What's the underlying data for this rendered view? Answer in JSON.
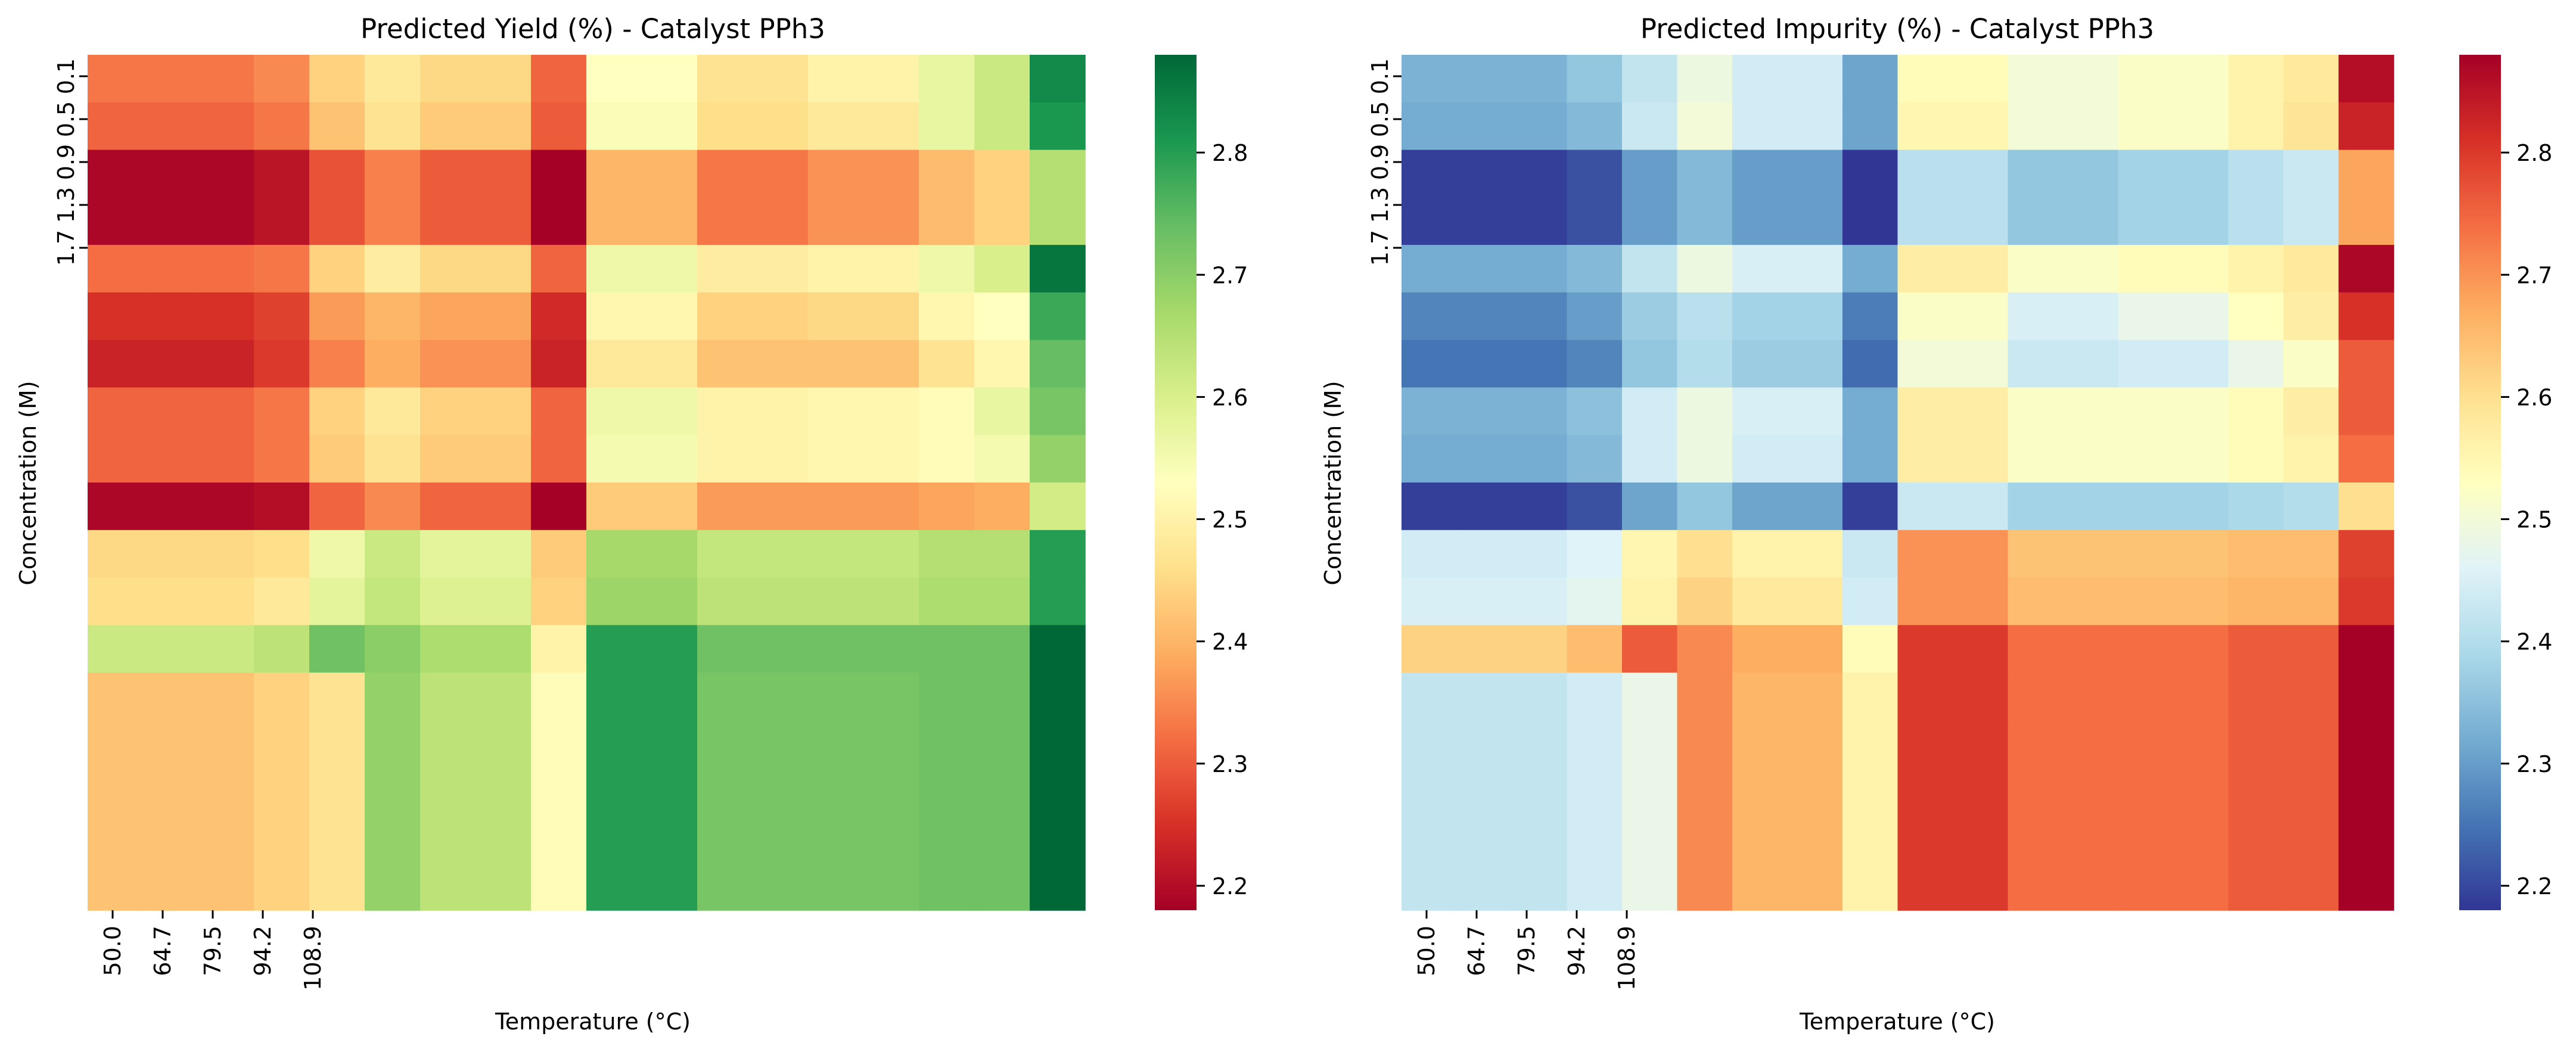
{
  "chart_data": [
    {
      "type": "heatmap",
      "title": "Predicted Yield (%) - Catalyst PPh3",
      "xlabel": "Temperature (°C)",
      "ylabel": "Concentration (M)",
      "x_tick_labels": [
        "50.0",
        "64.7",
        "79.5",
        "94.2",
        "108.9"
      ],
      "y_tick_labels": [
        "0.1",
        "0.5",
        "0.9",
        "1.3",
        "1.7"
      ],
      "colormap": "RdYlGn",
      "color_range": [
        2.18,
        2.88
      ],
      "colorbar_ticks": [
        "2.2",
        "2.3",
        "2.4",
        "2.5",
        "2.6",
        "2.7",
        "2.8"
      ],
      "colorbar_tick_values": [
        2.2,
        2.3,
        2.4,
        2.5,
        2.6,
        2.7,
        2.8
      ],
      "col_widths": [
        1,
        1,
        1,
        1,
        1,
        1,
        2,
        1,
        2,
        2,
        2,
        1,
        1,
        1
      ],
      "row_heights": [
        1,
        1,
        2,
        1,
        1,
        1,
        1,
        1,
        1,
        1,
        1,
        1,
        1,
        4
      ],
      "cells": [
        [
          2.33,
          2.33,
          2.33,
          2.35,
          2.44,
          2.48,
          2.45,
          2.31,
          2.53,
          2.47,
          2.5,
          2.57,
          2.62,
          2.83
        ],
        [
          2.31,
          2.31,
          2.31,
          2.33,
          2.42,
          2.47,
          2.43,
          2.3,
          2.54,
          2.46,
          2.48,
          2.57,
          2.62,
          2.81
        ],
        [
          2.19,
          2.19,
          2.19,
          2.21,
          2.29,
          2.34,
          2.3,
          2.18,
          2.4,
          2.33,
          2.36,
          2.41,
          2.44,
          2.65
        ],
        [
          2.32,
          2.32,
          2.32,
          2.33,
          2.44,
          2.49,
          2.45,
          2.31,
          2.56,
          2.49,
          2.5,
          2.56,
          2.6,
          2.86
        ],
        [
          2.25,
          2.25,
          2.25,
          2.27,
          2.37,
          2.4,
          2.38,
          2.24,
          2.51,
          2.44,
          2.45,
          2.51,
          2.53,
          2.78
        ],
        [
          2.23,
          2.23,
          2.23,
          2.26,
          2.34,
          2.39,
          2.36,
          2.23,
          2.48,
          2.42,
          2.42,
          2.47,
          2.51,
          2.74
        ],
        [
          2.31,
          2.31,
          2.31,
          2.33,
          2.44,
          2.48,
          2.44,
          2.31,
          2.56,
          2.5,
          2.51,
          2.52,
          2.57,
          2.72
        ],
        [
          2.31,
          2.31,
          2.31,
          2.33,
          2.43,
          2.47,
          2.43,
          2.31,
          2.55,
          2.5,
          2.51,
          2.52,
          2.55,
          2.69
        ],
        [
          2.19,
          2.19,
          2.19,
          2.2,
          2.31,
          2.35,
          2.31,
          2.18,
          2.43,
          2.37,
          2.37,
          2.38,
          2.39,
          2.61
        ],
        [
          2.45,
          2.45,
          2.45,
          2.46,
          2.56,
          2.62,
          2.58,
          2.43,
          2.67,
          2.63,
          2.63,
          2.65,
          2.65,
          2.8
        ],
        [
          2.46,
          2.46,
          2.46,
          2.48,
          2.58,
          2.63,
          2.59,
          2.44,
          2.68,
          2.64,
          2.64,
          2.66,
          2.66,
          2.8
        ],
        [
          2.62,
          2.62,
          2.62,
          2.64,
          2.73,
          2.7,
          2.66,
          2.5,
          2.8,
          2.73,
          2.73,
          2.73,
          2.73,
          2.88
        ],
        [
          2.42,
          2.42,
          2.42,
          2.44,
          2.47,
          2.69,
          2.64,
          2.52,
          2.8,
          2.72,
          2.72,
          2.73,
          2.73,
          2.88
        ],
        [
          2.42,
          2.42,
          2.42,
          2.44,
          2.47,
          2.69,
          2.64,
          2.52,
          2.8,
          2.72,
          2.72,
          2.73,
          2.73,
          2.88
        ]
      ]
    },
    {
      "type": "heatmap",
      "title": "Predicted Impurity (%) - Catalyst PPh3",
      "xlabel": "Temperature (°C)",
      "ylabel": "Concentration (M)",
      "x_tick_labels": [
        "50.0",
        "64.7",
        "79.5",
        "94.2",
        "108.9"
      ],
      "y_tick_labels": [
        "0.1",
        "0.5",
        "0.9",
        "1.3",
        "1.7"
      ],
      "colormap": "RdYlBu_r",
      "color_range": [
        2.18,
        2.88
      ],
      "colorbar_ticks": [
        "2.2",
        "2.3",
        "2.4",
        "2.5",
        "2.6",
        "2.7",
        "2.8"
      ],
      "colorbar_tick_values": [
        2.2,
        2.3,
        2.4,
        2.5,
        2.6,
        2.7,
        2.8
      ],
      "col_widths": [
        1,
        1,
        1,
        1,
        1,
        1,
        2,
        1,
        2,
        2,
        2,
        1,
        1,
        1
      ],
      "row_heights": [
        1,
        1,
        2,
        1,
        1,
        1,
        1,
        1,
        1,
        1,
        1,
        1,
        1,
        4
      ],
      "cells": [
        [
          2.33,
          2.33,
          2.33,
          2.36,
          2.42,
          2.49,
          2.44,
          2.31,
          2.54,
          2.5,
          2.52,
          2.56,
          2.58,
          2.86
        ],
        [
          2.32,
          2.32,
          2.32,
          2.34,
          2.43,
          2.5,
          2.44,
          2.31,
          2.55,
          2.5,
          2.52,
          2.56,
          2.59,
          2.83
        ],
        [
          2.19,
          2.19,
          2.19,
          2.21,
          2.3,
          2.34,
          2.3,
          2.18,
          2.41,
          2.36,
          2.38,
          2.41,
          2.43,
          2.68
        ],
        [
          2.32,
          2.32,
          2.32,
          2.34,
          2.42,
          2.49,
          2.45,
          2.32,
          2.57,
          2.52,
          2.54,
          2.56,
          2.58,
          2.87
        ],
        [
          2.27,
          2.27,
          2.27,
          2.3,
          2.37,
          2.41,
          2.38,
          2.26,
          2.52,
          2.45,
          2.48,
          2.53,
          2.57,
          2.81
        ],
        [
          2.25,
          2.25,
          2.25,
          2.27,
          2.36,
          2.4,
          2.37,
          2.24,
          2.5,
          2.43,
          2.44,
          2.48,
          2.52,
          2.76
        ],
        [
          2.33,
          2.33,
          2.33,
          2.35,
          2.44,
          2.49,
          2.45,
          2.32,
          2.57,
          2.52,
          2.52,
          2.54,
          2.57,
          2.76
        ],
        [
          2.32,
          2.32,
          2.32,
          2.34,
          2.44,
          2.49,
          2.44,
          2.32,
          2.57,
          2.52,
          2.52,
          2.54,
          2.56,
          2.74
        ],
        [
          2.19,
          2.19,
          2.19,
          2.21,
          2.31,
          2.36,
          2.31,
          2.19,
          2.43,
          2.38,
          2.38,
          2.39,
          2.4,
          2.6
        ],
        [
          2.44,
          2.44,
          2.44,
          2.46,
          2.55,
          2.6,
          2.56,
          2.43,
          2.7,
          2.64,
          2.64,
          2.65,
          2.65,
          2.79
        ],
        [
          2.45,
          2.45,
          2.45,
          2.47,
          2.56,
          2.62,
          2.58,
          2.44,
          2.7,
          2.65,
          2.65,
          2.66,
          2.66,
          2.8
        ],
        [
          2.62,
          2.62,
          2.62,
          2.65,
          2.76,
          2.71,
          2.67,
          2.54,
          2.8,
          2.74,
          2.74,
          2.76,
          2.76,
          2.88
        ],
        [
          2.42,
          2.42,
          2.42,
          2.44,
          2.48,
          2.71,
          2.66,
          2.56,
          2.8,
          2.74,
          2.74,
          2.76,
          2.76,
          2.88
        ],
        [
          2.42,
          2.42,
          2.42,
          2.44,
          2.48,
          2.71,
          2.66,
          2.56,
          2.8,
          2.74,
          2.74,
          2.76,
          2.76,
          2.88
        ]
      ]
    }
  ]
}
